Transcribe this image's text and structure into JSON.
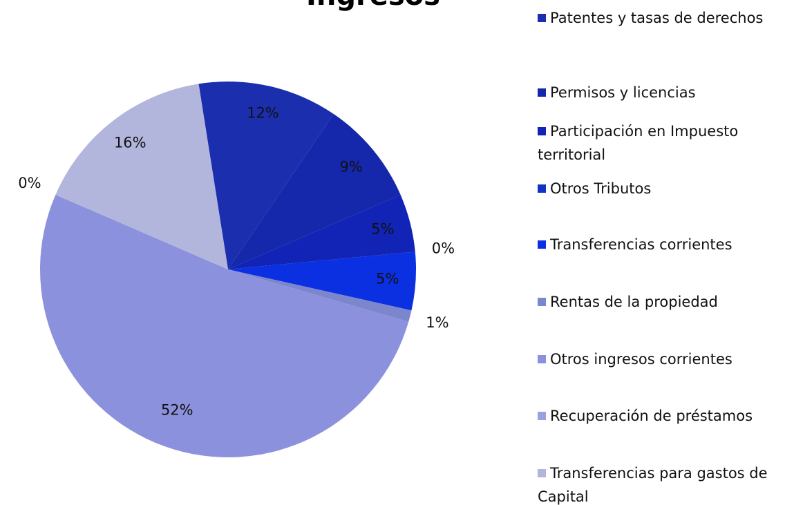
{
  "chart_data": {
    "type": "pie",
    "title": "Ingresos",
    "categories": [
      "Patentes y tasas de derechos",
      "Permisos y licencias",
      "Participación en Impuesto territorial",
      "Otros Tributos",
      "Transferencias corrientes",
      "Rentas de la propiedad",
      "Otros ingresos corrientes",
      "Recuperación de préstamos",
      "Transferencias para gastos de Capital"
    ],
    "values": [
      12,
      9,
      5,
      0,
      5,
      1,
      52,
      0,
      16
    ],
    "value_labels": [
      "12%",
      "9%",
      "5%",
      "0%",
      "5%",
      "1%",
      "52%",
      "0%",
      "16%"
    ],
    "colors": [
      "#1b2fae",
      "#1527ab",
      "#1124b6",
      "#1232c2",
      "#0b30e2",
      "#7c86cc",
      "#8b91dc",
      "#9aa0e2",
      "#b2b5dc"
    ],
    "legend": "right"
  }
}
